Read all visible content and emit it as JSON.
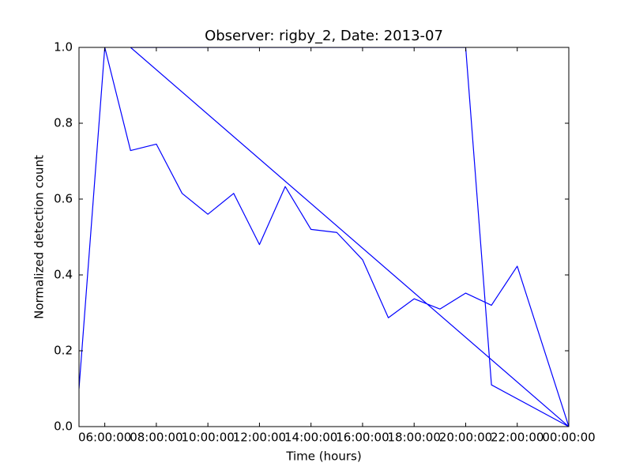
{
  "chart_data": {
    "type": "line",
    "title": "Observer: rigby_2, Date: 2013-07",
    "xlabel": "Time (hours)",
    "ylabel": "Normalized detection count",
    "x": [
      5,
      6,
      7,
      8,
      9,
      10,
      11,
      12,
      13,
      14,
      15,
      16,
      17,
      18,
      19,
      20,
      21,
      22,
      24,
      7,
      20,
      21,
      24
    ],
    "series": [
      {
        "color": "#0000ff",
        "values": [
          0.1,
          1.0,
          0.728,
          0.745,
          0.615,
          0.56,
          0.615,
          0.48,
          0.633,
          0.52,
          0.512,
          0.44,
          0.287,
          0.337,
          0.31,
          0.352,
          0.32,
          0.423,
          0,
          1.0,
          1.0,
          0.11,
          0
        ]
      }
    ],
    "xlim": [
      5,
      24
    ],
    "ylim": [
      0,
      1
    ],
    "xticks": [
      {
        "value": 6,
        "label": "06:00:00"
      },
      {
        "value": 8,
        "label": "08:00:00"
      },
      {
        "value": 10,
        "label": "10:00:00"
      },
      {
        "value": 12,
        "label": "12:00:00"
      },
      {
        "value": 14,
        "label": "14:00:00"
      },
      {
        "value": 16,
        "label": "16:00:00"
      },
      {
        "value": 18,
        "label": "18:00:00"
      },
      {
        "value": 20,
        "label": "20:00:00"
      },
      {
        "value": 22,
        "label": "22:00:00"
      },
      {
        "value": 24,
        "label": "00:00:00"
      }
    ],
    "yticks": [
      {
        "value": 0,
        "label": "0.0"
      },
      0.2,
      0.4,
      0.6,
      0.8,
      {
        "value": 1,
        "label": "1.0"
      }
    ],
    "grid": false
  }
}
